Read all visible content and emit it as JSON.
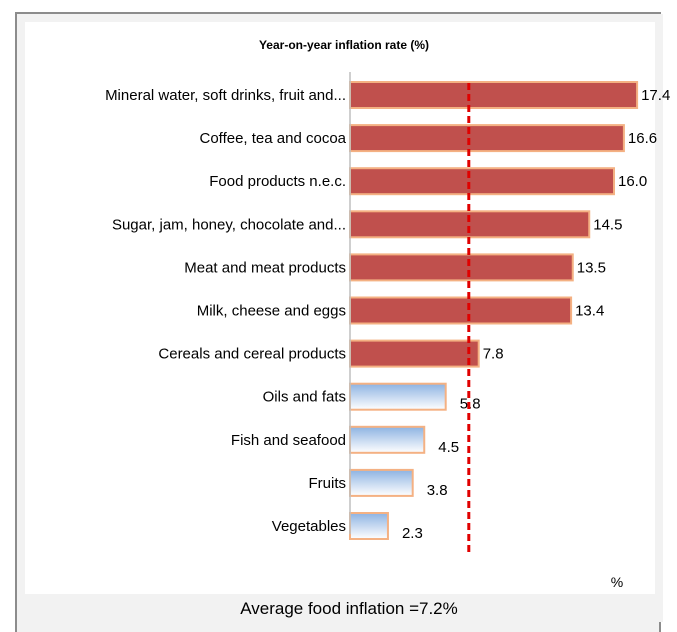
{
  "chart_data": {
    "type": "bar",
    "orientation": "horizontal",
    "title": "Year-on-year inflation rate (%)",
    "unit_label": "%",
    "categories": [
      "Mineral water, soft drinks, fruit and...",
      "Coffee, tea and cocoa",
      "Food products n.e.c.",
      "Sugar, jam, honey, chocolate and...",
      "Meat and meat products",
      "Milk, cheese and eggs",
      "Cereals and cereal products",
      "Oils and fats",
      "Fish and seafood",
      "Fruits",
      "Vegetables"
    ],
    "values": [
      17.4,
      16.6,
      16.0,
      14.5,
      13.5,
      13.4,
      7.8,
      5.8,
      4.5,
      3.8,
      2.3
    ],
    "value_labels": [
      "17.4",
      "16.6",
      "16.0",
      "14.5",
      "13.5",
      "13.4",
      "7.8",
      "5.8",
      "4.5",
      "3.8",
      "2.3"
    ],
    "xlim": [
      0,
      18
    ],
    "average": {
      "value": 7.2,
      "label": "Average food inflation =7.2%",
      "color": "#e00000"
    },
    "colors": {
      "above_average_fill": "#c0504d",
      "above_average_stroke": "#f4b183",
      "below_average_top": "#8db3e2",
      "below_average_bottom": "#ffffff",
      "below_average_stroke": "#f4b183"
    },
    "grid": false,
    "legend": "none"
  }
}
